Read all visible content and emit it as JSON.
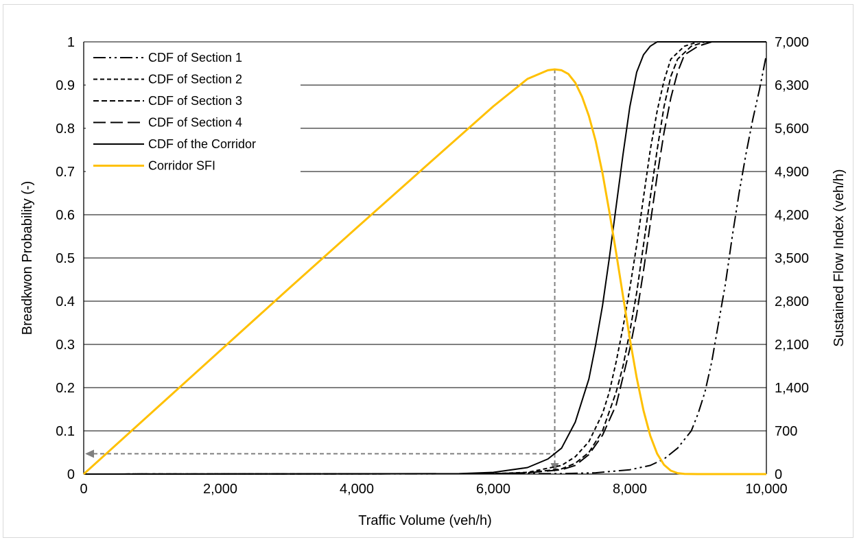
{
  "chart_data": {
    "type": "line",
    "title": "",
    "xlabel": "Traffic Volume (veh/h)",
    "ylabel": "Breadkwon Probability (-)",
    "y2label": "Sustained Flow Index (veh/h)",
    "xlim": [
      0,
      10000
    ],
    "ylim": [
      0,
      1
    ],
    "y2lim": [
      0,
      7000
    ],
    "x_ticks": [
      0,
      2000,
      4000,
      6000,
      8000,
      10000
    ],
    "x_tick_labels": [
      "0",
      "2,000",
      "4,000",
      "6,000",
      "8,000",
      "10,000"
    ],
    "y_ticks": [
      0,
      0.1,
      0.2,
      0.3,
      0.4,
      0.5,
      0.6,
      0.7,
      0.8,
      0.9,
      1
    ],
    "y_tick_labels": [
      "0",
      "0.1",
      "0.2",
      "0.3",
      "0.4",
      "0.5",
      "0.6",
      "0.7",
      "0.8",
      "0.9",
      "1"
    ],
    "y2_ticks": [
      0,
      700,
      1400,
      2100,
      2800,
      3500,
      4200,
      4900,
      5600,
      6300,
      7000
    ],
    "y2_tick_labels": [
      "0",
      "700",
      "1,400",
      "2,100",
      "2,800",
      "3,500",
      "4,200",
      "4,900",
      "5,600",
      "6,300",
      "7,000"
    ],
    "grid": "horizontal",
    "legend_position": "top-left",
    "series": [
      {
        "name": "CDF of Section 1",
        "axis": "left",
        "color": "#000000",
        "dash": "dash-dot-dot",
        "x": [
          0,
          7000,
          7500,
          8000,
          8300,
          8500,
          8700,
          8900,
          9000,
          9100,
          9200,
          9300,
          9400,
          9500,
          9600,
          9700,
          9800,
          9900,
          10000
        ],
        "y": [
          0,
          0.001,
          0.003,
          0.01,
          0.02,
          0.035,
          0.06,
          0.1,
          0.14,
          0.19,
          0.26,
          0.35,
          0.44,
          0.55,
          0.65,
          0.74,
          0.82,
          0.89,
          0.97
        ]
      },
      {
        "name": "CDF of Section 2",
        "axis": "left",
        "color": "#000000",
        "dash": "short-dash",
        "x": [
          0,
          6000,
          6500,
          7000,
          7200,
          7400,
          7600,
          7700,
          7800,
          7900,
          8000,
          8100,
          8200,
          8300,
          8400,
          8500,
          8600,
          8800,
          9000,
          10000
        ],
        "y": [
          0,
          0.001,
          0.004,
          0.02,
          0.04,
          0.075,
          0.14,
          0.19,
          0.26,
          0.34,
          0.43,
          0.53,
          0.64,
          0.75,
          0.84,
          0.91,
          0.96,
          0.99,
          1.0,
          1.0
        ]
      },
      {
        "name": "CDF of Section 3",
        "axis": "left",
        "color": "#000000",
        "dash": "dash",
        "x": [
          0,
          6000,
          6500,
          7000,
          7200,
          7400,
          7600,
          7800,
          7900,
          8000,
          8100,
          8200,
          8300,
          8400,
          8500,
          8600,
          8700,
          8900,
          9100,
          10000
        ],
        "y": [
          0,
          0.001,
          0.003,
          0.012,
          0.025,
          0.05,
          0.1,
          0.19,
          0.25,
          0.33,
          0.42,
          0.53,
          0.64,
          0.75,
          0.85,
          0.92,
          0.96,
          0.99,
          1.0,
          1.0
        ]
      },
      {
        "name": "CDF of Section 4",
        "axis": "left",
        "color": "#000000",
        "dash": "long-dash",
        "x": [
          0,
          6000,
          6500,
          7000,
          7200,
          7400,
          7600,
          7800,
          8000,
          8100,
          8200,
          8300,
          8400,
          8500,
          8600,
          8700,
          8800,
          9000,
          9200,
          10000
        ],
        "y": [
          0,
          0.001,
          0.003,
          0.01,
          0.02,
          0.045,
          0.09,
          0.16,
          0.29,
          0.37,
          0.47,
          0.58,
          0.69,
          0.79,
          0.87,
          0.93,
          0.97,
          0.99,
          1.0,
          1.0
        ]
      },
      {
        "name": "CDF of the Corridor",
        "axis": "left",
        "color": "#000000",
        "dash": "solid",
        "x": [
          0,
          5500,
          6000,
          6500,
          6800,
          7000,
          7200,
          7400,
          7500,
          7600,
          7700,
          7800,
          7900,
          8000,
          8100,
          8200,
          8300,
          8400,
          8600,
          10000
        ],
        "y": [
          0,
          0.001,
          0.004,
          0.015,
          0.035,
          0.06,
          0.12,
          0.22,
          0.3,
          0.39,
          0.5,
          0.62,
          0.74,
          0.85,
          0.93,
          0.97,
          0.99,
          1.0,
          1.0,
          1.0
        ]
      },
      {
        "name": "Corridor SFI",
        "axis": "right",
        "color": "#FFC000",
        "dash": "solid",
        "x": [
          0,
          1000,
          2000,
          3000,
          4000,
          5000,
          6000,
          6500,
          6800,
          6900,
          7000,
          7100,
          7200,
          7300,
          7400,
          7500,
          7600,
          7700,
          7800,
          7900,
          8000,
          8100,
          8200,
          8300,
          8400,
          8500,
          8600,
          8700,
          8800,
          9000,
          10000
        ],
        "y": [
          0,
          1000,
          2000,
          3000,
          3990,
          4975,
          5955,
          6400,
          6540,
          6555,
          6540,
          6480,
          6340,
          6110,
          5800,
          5390,
          4870,
          4250,
          3580,
          2880,
          2190,
          1560,
          1030,
          620,
          330,
          150,
          55,
          15,
          3,
          0,
          0
        ]
      }
    ],
    "annotations": {
      "vertical_ref_x": 6900,
      "vertical_ref_y2": 6555,
      "horizontal_ref_y": 0.047,
      "color": "#808080"
    }
  }
}
